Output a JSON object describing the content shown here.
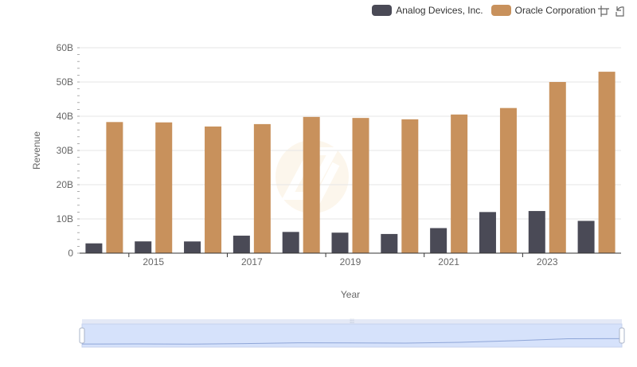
{
  "chart_data": {
    "type": "bar",
    "title": "",
    "xlabel": "Year",
    "ylabel": "Revenue",
    "ylim": [
      0,
      60000000000
    ],
    "yticks": [
      0,
      10000000000,
      20000000000,
      30000000000,
      40000000000,
      50000000000,
      60000000000
    ],
    "ytick_labels": [
      "0",
      "10B",
      "20B",
      "30B",
      "40B",
      "50B",
      "60B"
    ],
    "x": [
      2014,
      2015,
      2016,
      2017,
      2018,
      2019,
      2020,
      2021,
      2022,
      2023,
      2024
    ],
    "xtick_labels": [
      "2015",
      "2017",
      "2019",
      "2021",
      "2023"
    ],
    "legend_position": "top-right",
    "grid": true,
    "series": [
      {
        "name": "Analog Devices, Inc.",
        "color": "#4a4a56",
        "values": [
          2860000000,
          3440000000,
          3420000000,
          5110000000,
          6200000000,
          5990000000,
          5600000000,
          7320000000,
          12010000000,
          12310000000,
          9430000000
        ]
      },
      {
        "name": "Oracle Corporation",
        "color": "#c8915c",
        "values": [
          38300000000,
          38200000000,
          37000000000,
          37700000000,
          39800000000,
          39500000000,
          39100000000,
          40500000000,
          42400000000,
          50000000000,
          53000000000
        ]
      }
    ]
  },
  "toolbox": {
    "icons": [
      "zoom-icon",
      "restore-icon"
    ]
  },
  "colors": {
    "grid": "#e6e6e6",
    "axis": "#333333",
    "datazoom_fill": "#d6e2fb",
    "datazoom_border": "#c7d3ee"
  }
}
